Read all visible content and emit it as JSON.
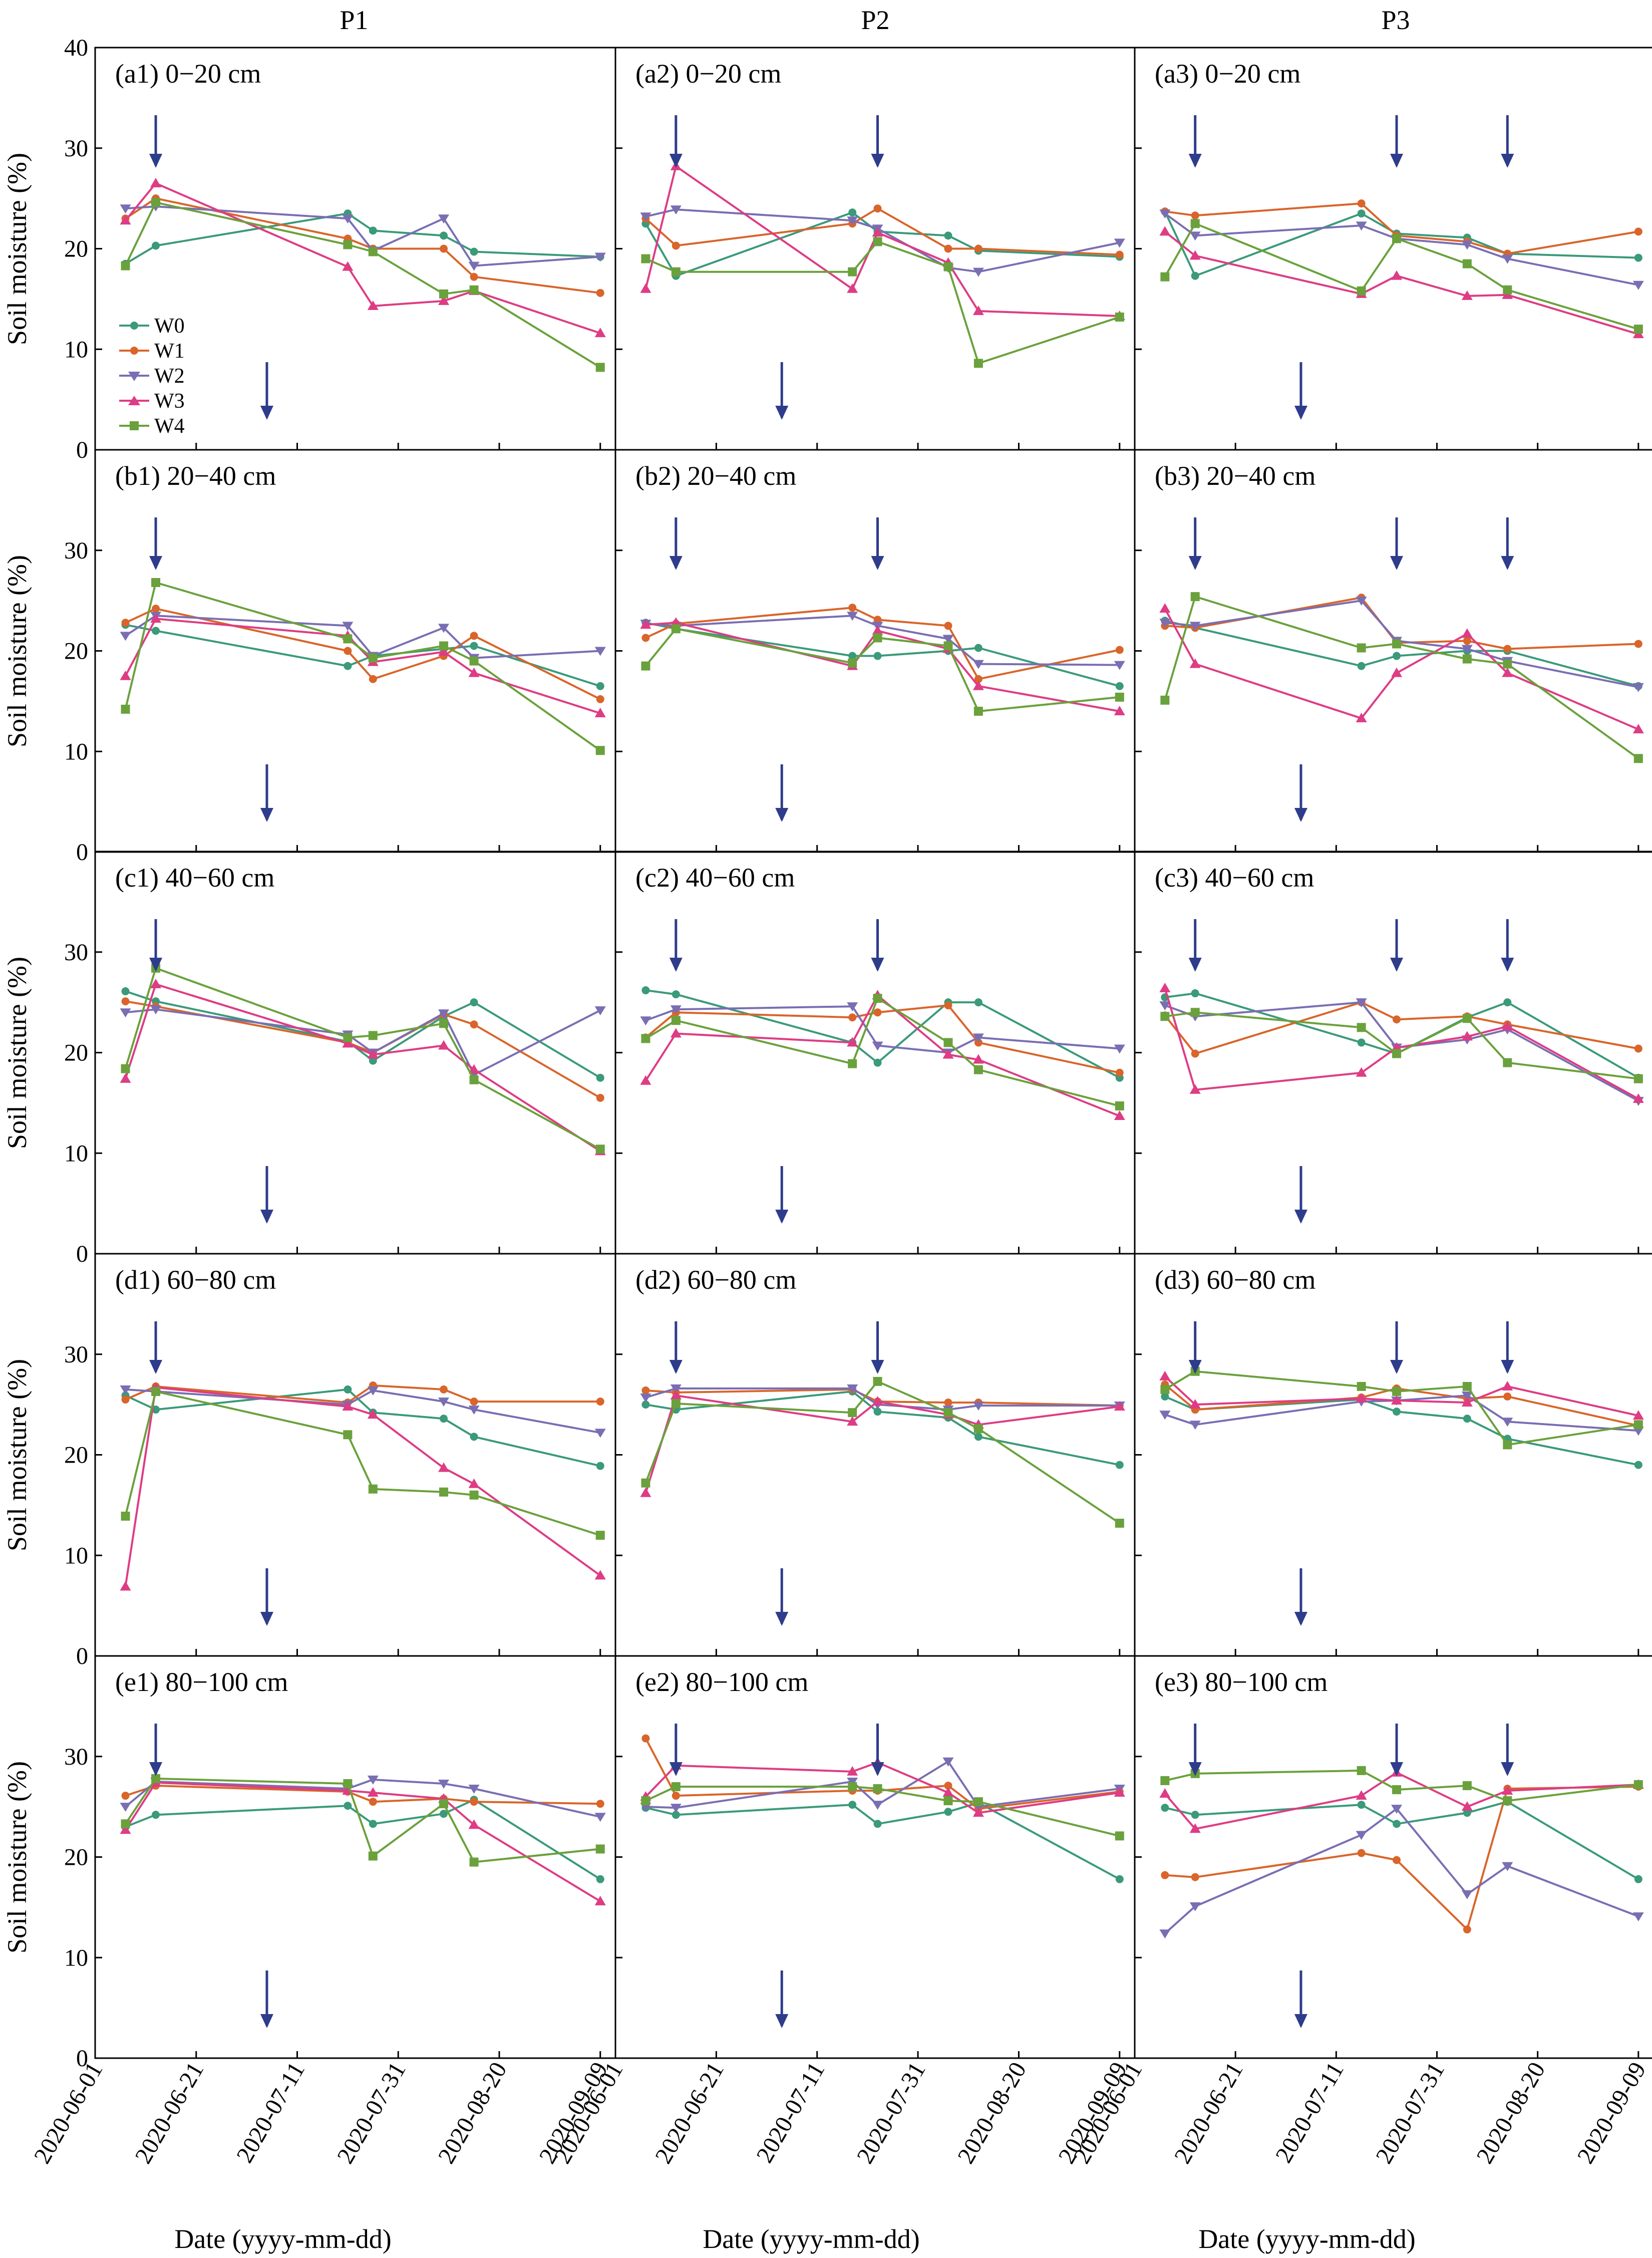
{
  "chart_data": {
    "type": "line",
    "columns": [
      "P1",
      "P2",
      "P3"
    ],
    "depths": [
      "0−20 cm",
      "20−40 cm",
      "40−60 cm",
      "60−80 cm",
      "80−100 cm"
    ],
    "panel_letters": [
      "a",
      "b",
      "c",
      "d",
      "e"
    ],
    "ylabel": "Soil moisture (%)",
    "xlabel": "Date (yyyy-mm-dd)",
    "ylim": [
      0,
      40
    ],
    "yticks": [
      0,
      10,
      20,
      30,
      40
    ],
    "xlim": [
      "2020-06-01",
      "2020-09-12"
    ],
    "xtick_labels": [
      "2020-06-01",
      "2020-06-21",
      "2020-07-11",
      "2020-07-31",
      "2020-08-20",
      "2020-09-09"
    ],
    "legend": [
      "W0",
      "W1",
      "W2",
      "W3",
      "W4"
    ],
    "series_colors": [
      "#3a9a7a",
      "#d9652a",
      "#7a6eb3",
      "#de3c84",
      "#6aa13c"
    ],
    "arrow_color": "#2e3c8c",
    "dates": {
      "P1": [
        "2020-06-07",
        "2020-06-13",
        "2020-07-21",
        "2020-07-26",
        "2020-08-09",
        "2020-08-15",
        "2020-09-09"
      ],
      "P2": [
        "2020-06-07",
        "2020-06-13",
        "2020-07-18",
        "2020-07-23",
        "2020-08-06",
        "2020-08-12",
        "2020-09-09"
      ],
      "P3": [
        "2020-06-07",
        "2020-06-13",
        "2020-07-16",
        "2020-07-23",
        "2020-08-06",
        "2020-08-14",
        "2020-09-09"
      ]
    },
    "arrows": {
      "P1": {
        "top": [
          "2020-06-13"
        ],
        "bottom": [
          "2020-07-05"
        ]
      },
      "P2": {
        "top": [
          "2020-06-13",
          "2020-07-23"
        ],
        "bottom": [
          "2020-07-04"
        ]
      },
      "P3": {
        "top": [
          "2020-06-13",
          "2020-07-23",
          "2020-08-14"
        ],
        "bottom": [
          "2020-07-04"
        ]
      }
    },
    "panels": [
      [
        {
          "W0": [
            18.5,
            20.3,
            23.5,
            21.8,
            21.3,
            19.7,
            19.2
          ],
          "W1": [
            23.0,
            25.0,
            21.0,
            20.0,
            20.0,
            17.2,
            15.6
          ],
          "W2": [
            24.0,
            24.2,
            23.0,
            19.8,
            23.0,
            18.3,
            19.2
          ],
          "W3": [
            22.8,
            26.5,
            18.2,
            14.3,
            14.8,
            15.8,
            11.6
          ],
          "W4": [
            18.3,
            24.6,
            20.4,
            19.7,
            15.5,
            15.9,
            8.2
          ]
        },
        {
          "W0": [
            22.6,
            22.0,
            18.5,
            19.5,
            20.2,
            20.5,
            16.5
          ],
          "W1": [
            22.8,
            24.2,
            20.0,
            17.2,
            19.5,
            21.5,
            15.2
          ],
          "W2": [
            21.5,
            23.5,
            22.5,
            19.5,
            22.3,
            19.3,
            20.0
          ],
          "W3": [
            17.5,
            23.2,
            21.5,
            18.9,
            19.9,
            17.8,
            13.8
          ],
          "W4": [
            14.2,
            26.8,
            21.2,
            19.3,
            20.5,
            19.0,
            10.1
          ]
        },
        {
          "W0": [
            26.1,
            25.1,
            21.1,
            19.2,
            23.6,
            25.0,
            17.5
          ],
          "W1": [
            25.1,
            24.6,
            21.0,
            20.0,
            23.8,
            22.8,
            15.5
          ],
          "W2": [
            24.0,
            24.3,
            21.8,
            20.0,
            23.9,
            17.8,
            24.2
          ],
          "W3": [
            17.4,
            26.8,
            20.9,
            19.8,
            20.7,
            18.3,
            10.2
          ],
          "W4": [
            18.4,
            28.4,
            21.5,
            21.7,
            22.9,
            17.3,
            10.4
          ]
        },
        {
          "W0": [
            25.9,
            24.5,
            26.5,
            24.2,
            23.6,
            21.8,
            18.9
          ],
          "W1": [
            25.5,
            26.8,
            25.2,
            26.9,
            26.5,
            25.3,
            25.3
          ],
          "W2": [
            26.5,
            26.3,
            25.0,
            26.4,
            25.3,
            24.5,
            22.2
          ],
          "W3": [
            6.9,
            26.7,
            24.8,
            24.0,
            18.7,
            17.1,
            8.0
          ],
          "W4": [
            13.9,
            26.3,
            22.0,
            16.6,
            16.3,
            16.0,
            12.0
          ]
        },
        {
          "W0": [
            23.0,
            24.2,
            25.1,
            23.3,
            24.3,
            25.7,
            17.8
          ],
          "W1": [
            26.1,
            27.1,
            26.5,
            25.5,
            25.8,
            25.5,
            25.3
          ],
          "W2": [
            25.0,
            27.5,
            26.8,
            27.7,
            27.3,
            26.8,
            24.0
          ],
          "W3": [
            22.7,
            27.4,
            26.6,
            26.4,
            25.8,
            23.2,
            15.6
          ],
          "W4": [
            23.3,
            27.8,
            27.3,
            20.1,
            25.3,
            19.5,
            20.8
          ]
        }
      ],
      [
        {
          "W0": [
            22.5,
            17.3,
            23.6,
            21.7,
            21.3,
            19.8,
            19.2
          ],
          "W1": [
            23.0,
            20.3,
            22.5,
            24.0,
            20.0,
            20.0,
            19.4
          ],
          "W2": [
            23.2,
            23.9,
            22.8,
            22.0,
            18.1,
            17.7,
            20.6
          ],
          "W3": [
            16.0,
            28.2,
            16.0,
            21.6,
            18.6,
            13.8,
            13.3
          ],
          "W4": [
            19.0,
            17.7,
            17.7,
            20.7,
            18.2,
            8.6,
            13.2
          ]
        },
        {
          "W0": [
            22.8,
            22.2,
            19.5,
            19.5,
            20.0,
            20.3,
            16.5
          ],
          "W1": [
            21.3,
            22.7,
            24.3,
            23.1,
            22.5,
            17.2,
            20.1
          ],
          "W2": [
            22.7,
            22.5,
            23.5,
            22.5,
            21.2,
            18.7,
            18.6
          ],
          "W3": [
            22.6,
            22.8,
            18.5,
            22.0,
            20.2,
            16.5,
            14.0
          ],
          "W4": [
            18.5,
            22.2,
            18.8,
            21.3,
            20.5,
            14.0,
            15.4
          ]
        },
        {
          "W0": [
            26.2,
            25.8,
            21.0,
            19.0,
            25.0,
            25.0,
            17.5
          ],
          "W1": [
            21.5,
            24.0,
            23.5,
            24.0,
            24.7,
            21.0,
            18.0
          ],
          "W2": [
            23.2,
            24.3,
            24.6,
            20.7,
            20.0,
            21.5,
            20.4
          ],
          "W3": [
            17.2,
            21.9,
            21.0,
            25.7,
            19.8,
            19.3,
            13.7
          ],
          "W4": [
            21.4,
            23.2,
            18.9,
            25.4,
            21.0,
            18.3,
            14.7
          ]
        },
        {
          "W0": [
            25.0,
            24.5,
            26.3,
            24.3,
            23.7,
            21.8,
            19.0
          ],
          "W1": [
            26.4,
            26.2,
            26.5,
            25.3,
            25.2,
            25.2,
            24.9
          ],
          "W2": [
            25.7,
            26.6,
            26.6,
            25.0,
            24.5,
            24.9,
            24.9
          ],
          "W3": [
            16.2,
            25.9,
            23.3,
            25.3,
            24.0,
            23.0,
            24.8
          ],
          "W4": [
            17.2,
            25.1,
            24.2,
            27.3,
            24.2,
            22.6,
            13.2
          ]
        },
        {
          "W0": [
            24.9,
            24.2,
            25.2,
            23.3,
            24.5,
            25.4,
            17.8
          ],
          "W1": [
            31.8,
            26.1,
            26.6,
            26.6,
            27.1,
            24.8,
            26.5
          ],
          "W2": [
            25.0,
            24.9,
            27.5,
            25.2,
            29.5,
            25.0,
            26.8
          ],
          "W3": [
            26.0,
            29.1,
            28.5,
            29.4,
            26.4,
            24.4,
            26.4
          ],
          "W4": [
            25.6,
            27.0,
            27.0,
            26.8,
            25.6,
            25.5,
            22.1
          ]
        }
      ],
      [
        {
          "W0": [
            23.7,
            17.3,
            23.5,
            21.5,
            21.1,
            19.5,
            19.1
          ],
          "W1": [
            23.7,
            23.3,
            24.5,
            21.3,
            20.7,
            19.5,
            21.7
          ],
          "W2": [
            23.5,
            21.3,
            22.3,
            21.0,
            20.4,
            19.0,
            16.4
          ],
          "W3": [
            21.7,
            19.3,
            15.5,
            17.3,
            15.3,
            15.4,
            11.5
          ],
          "W4": [
            17.2,
            22.5,
            15.8,
            21.0,
            18.5,
            15.9,
            12.0
          ]
        },
        {
          "W0": [
            23.0,
            22.3,
            18.5,
            19.5,
            20.0,
            20.0,
            16.5
          ],
          "W1": [
            22.5,
            22.3,
            25.3,
            20.8,
            21.0,
            20.2,
            20.7
          ],
          "W2": [
            22.8,
            22.5,
            25.0,
            21.0,
            20.2,
            19.0,
            16.4
          ],
          "W3": [
            24.2,
            18.7,
            13.3,
            17.8,
            21.7,
            17.8,
            12.2
          ],
          "W4": [
            15.1,
            25.4,
            20.3,
            20.7,
            19.2,
            18.7,
            9.3
          ]
        },
        {
          "W0": [
            25.5,
            25.9,
            21.0,
            19.9,
            23.5,
            25.0,
            17.5
          ],
          "W1": [
            23.7,
            19.9,
            25.0,
            23.3,
            23.6,
            22.8,
            20.4
          ],
          "W2": [
            24.7,
            23.6,
            25.0,
            20.5,
            21.3,
            22.3,
            15.2
          ],
          "W3": [
            26.4,
            16.3,
            18.0,
            20.5,
            21.6,
            22.6,
            15.4
          ],
          "W4": [
            23.6,
            24.0,
            22.5,
            19.9,
            23.4,
            19.0,
            17.4
          ]
        },
        {
          "W0": [
            25.8,
            24.5,
            25.5,
            24.3,
            23.6,
            21.6,
            19.0
          ],
          "W1": [
            27.0,
            24.5,
            25.7,
            26.6,
            25.6,
            25.8,
            22.9
          ],
          "W2": [
            24.0,
            23.0,
            25.3,
            25.4,
            25.9,
            23.3,
            22.4
          ],
          "W3": [
            27.8,
            25.0,
            25.6,
            25.4,
            25.2,
            26.8,
            23.9
          ],
          "W4": [
            26.5,
            28.3,
            26.8,
            26.3,
            26.8,
            21.0,
            23.0
          ]
        },
        {
          "W0": [
            24.9,
            24.2,
            25.2,
            23.3,
            24.4,
            25.5,
            17.8
          ],
          "W1": [
            18.2,
            18.0,
            20.4,
            19.7,
            12.8,
            26.8,
            27.0
          ],
          "W2": [
            12.4,
            15.1,
            22.2,
            24.8,
            16.3,
            19.1,
            14.1
          ],
          "W3": [
            26.3,
            22.8,
            26.1,
            28.4,
            25.0,
            26.6,
            27.2
          ],
          "W4": [
            27.6,
            28.3,
            28.6,
            26.7,
            27.1,
            25.6,
            27.2
          ]
        }
      ]
    ]
  }
}
